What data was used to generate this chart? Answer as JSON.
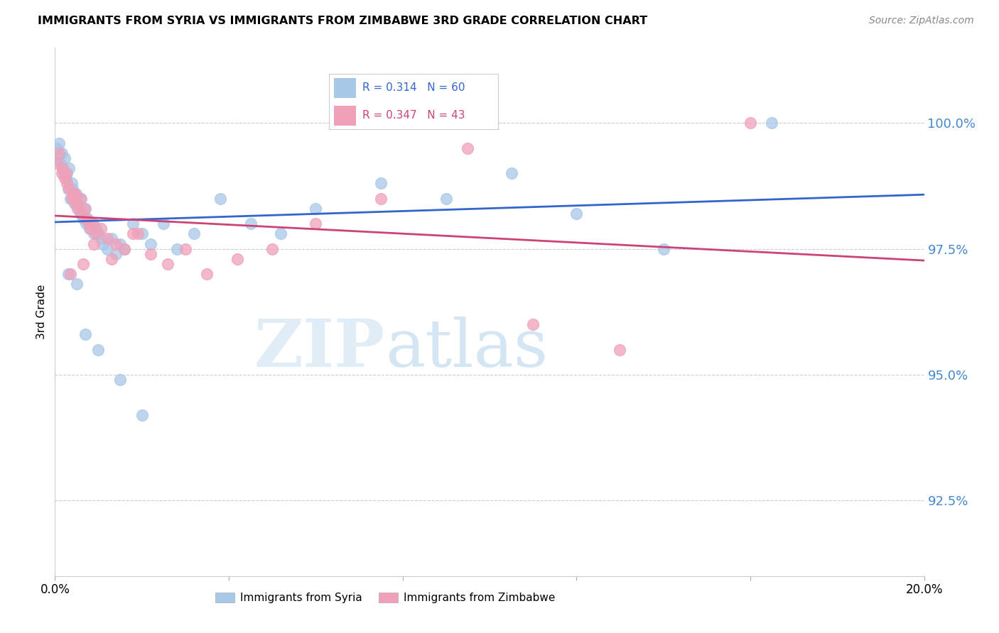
{
  "title": "IMMIGRANTS FROM SYRIA VS IMMIGRANTS FROM ZIMBABWE 3RD GRADE CORRELATION CHART",
  "source": "Source: ZipAtlas.com",
  "ylabel": "3rd Grade",
  "ytick_values": [
    92.5,
    95.0,
    97.5,
    100.0
  ],
  "xlim": [
    0.0,
    20.0
  ],
  "ylim": [
    91.0,
    101.5
  ],
  "color_syria": "#a8c8e8",
  "color_zimbabwe": "#f0a0b8",
  "color_syria_line": "#3366cc",
  "color_zimbabwe_line": "#cc4477",
  "watermark_zip": "ZIP",
  "watermark_atlas": "atlas",
  "syria_x": [
    0.05,
    0.08,
    0.1,
    0.12,
    0.15,
    0.18,
    0.2,
    0.22,
    0.25,
    0.28,
    0.3,
    0.32,
    0.35,
    0.38,
    0.4,
    0.42,
    0.45,
    0.48,
    0.5,
    0.55,
    0.58,
    0.6,
    0.65,
    0.7,
    0.72,
    0.75,
    0.8,
    0.85,
    0.9,
    0.95,
    1.0,
    1.05,
    1.1,
    1.2,
    1.3,
    1.4,
    1.5,
    1.6,
    1.8,
    2.0,
    2.2,
    2.5,
    2.8,
    3.2,
    3.8,
    4.5,
    5.2,
    6.0,
    7.5,
    9.0,
    10.5,
    12.0,
    14.0,
    16.5,
    0.3,
    0.5,
    0.7,
    1.0,
    1.5,
    2.0
  ],
  "syria_y": [
    99.5,
    99.3,
    99.6,
    99.2,
    99.4,
    99.1,
    99.0,
    99.3,
    98.9,
    99.0,
    98.7,
    99.1,
    98.5,
    98.8,
    98.7,
    98.5,
    98.4,
    98.6,
    98.5,
    98.3,
    98.2,
    98.5,
    98.1,
    98.3,
    98.0,
    98.1,
    97.9,
    98.0,
    97.8,
    97.9,
    97.8,
    97.7,
    97.6,
    97.5,
    97.7,
    97.4,
    97.6,
    97.5,
    98.0,
    97.8,
    97.6,
    98.0,
    97.5,
    97.8,
    98.5,
    98.0,
    97.8,
    98.3,
    98.8,
    98.5,
    99.0,
    98.2,
    97.5,
    100.0,
    97.0,
    96.8,
    95.8,
    95.5,
    94.9,
    94.2
  ],
  "zimbabwe_x": [
    0.05,
    0.1,
    0.15,
    0.18,
    0.22,
    0.28,
    0.32,
    0.38,
    0.42,
    0.48,
    0.52,
    0.58,
    0.62,
    0.68,
    0.72,
    0.78,
    0.82,
    0.88,
    0.95,
    1.05,
    1.2,
    1.4,
    1.6,
    1.9,
    2.2,
    2.6,
    3.0,
    3.5,
    4.2,
    5.0,
    6.0,
    7.5,
    9.5,
    11.0,
    13.0,
    16.0,
    0.25,
    0.45,
    0.65,
    0.9,
    1.3,
    1.8,
    0.35
  ],
  "zimbabwe_y": [
    99.2,
    99.4,
    99.0,
    99.1,
    98.9,
    98.8,
    98.7,
    98.5,
    98.6,
    98.4,
    98.3,
    98.5,
    98.2,
    98.3,
    98.1,
    98.0,
    97.9,
    98.0,
    97.8,
    97.9,
    97.7,
    97.6,
    97.5,
    97.8,
    97.4,
    97.2,
    97.5,
    97.0,
    97.3,
    97.5,
    98.0,
    98.5,
    99.5,
    96.0,
    95.5,
    100.0,
    99.0,
    98.6,
    97.2,
    97.6,
    97.3,
    97.8,
    97.0
  ]
}
